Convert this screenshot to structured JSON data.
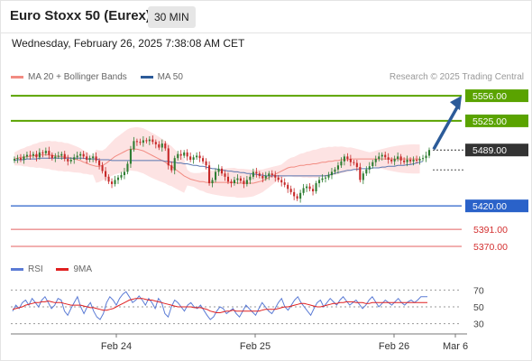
{
  "header": {
    "title": "Euro Stoxx 50 (Eurex)",
    "timeframe": "30 MIN",
    "datetime": "Wednesday, February 26, 2025 7:38:08 AM CET"
  },
  "legend": {
    "items": [
      {
        "label": "MA 20 + Bollinger Bands",
        "color": "#f28b82"
      },
      {
        "label": "MA 50",
        "color": "#2c5b99"
      }
    ],
    "credit": "Research © 2025 Trading Central"
  },
  "rsi_legend": {
    "items": [
      {
        "label": "RSI",
        "color": "#5b7bd5"
      },
      {
        "label": "9MA",
        "color": "#e02020"
      }
    ]
  },
  "colors": {
    "up": "#2e7d32",
    "down": "#c62828",
    "resistance": "#5aa300",
    "pivot": "#2a62c9",
    "support": "#e46060",
    "band_fill": "#fde3e3",
    "arrow": "#2c5b99"
  },
  "chart_data": [
    {
      "type": "candlestick",
      "title": "Euro Stoxx 50 (Eurex)",
      "ylim": [
        5360,
        5565
      ],
      "x_ticks": [
        "Feb 24",
        "Feb 25",
        "Feb 26",
        "Mar 6"
      ],
      "current_price": "5489.00",
      "levels": [
        {
          "label": "5556.00",
          "value": 5556,
          "kind": "resistance"
        },
        {
          "label": "5525.00",
          "value": 5525,
          "kind": "resistance"
        },
        {
          "label": "5420.00",
          "value": 5420,
          "kind": "pivot"
        },
        {
          "label": "5391.00",
          "value": 5391,
          "kind": "support"
        },
        {
          "label": "5370.00",
          "value": 5370,
          "kind": "support"
        }
      ],
      "close_path": [
        5478,
        5479,
        5477,
        5481,
        5483,
        5482,
        5484,
        5480,
        5486,
        5485,
        5488,
        5483,
        5479,
        5481,
        5482,
        5484,
        5478,
        5475,
        5477,
        5480,
        5482,
        5484,
        5481,
        5477,
        5479,
        5481,
        5476,
        5470,
        5463,
        5456,
        5450,
        5447,
        5452,
        5455,
        5458,
        5462,
        5472,
        5490,
        5500,
        5499,
        5498,
        5501,
        5500,
        5502,
        5499,
        5496,
        5492,
        5497,
        5491,
        5470,
        5464,
        5479,
        5484,
        5482,
        5486,
        5481,
        5477,
        5480,
        5482,
        5479,
        5475,
        5470,
        5448,
        5452,
        5462,
        5466,
        5460,
        5456,
        5450,
        5448,
        5452,
        5454,
        5451,
        5447,
        5452,
        5456,
        5462,
        5460,
        5457,
        5454,
        5457,
        5460,
        5458,
        5455,
        5452,
        5449,
        5446,
        5441,
        5437,
        5432,
        5429,
        5436,
        5442,
        5444,
        5441,
        5438,
        5448,
        5452,
        5454,
        5455,
        5458,
        5462,
        5465,
        5470,
        5475,
        5481,
        5478,
        5474,
        5473,
        5468,
        5452,
        5460,
        5465,
        5469,
        5474,
        5478,
        5481,
        5483,
        5480,
        5477,
        5475,
        5478,
        5481,
        5476,
        5474,
        5477,
        5475,
        5477,
        5476,
        5478,
        5479,
        5482,
        5489
      ],
      "ma20": [
        5478,
        5479,
        5480,
        5480,
        5481,
        5481,
        5482,
        5482,
        5483,
        5483,
        5483,
        5483,
        5482,
        5482,
        5481,
        5481,
        5480,
        5480,
        5479,
        5478,
        5477,
        5476,
        5474,
        5473,
        5471,
        5470,
        5469,
        5469,
        5470,
        5472,
        5475,
        5478,
        5481,
        5483,
        5485,
        5487,
        5489,
        5490,
        5490,
        5490,
        5489,
        5488,
        5486,
        5484,
        5482,
        5480,
        5478,
        5476,
        5474,
        5471,
        5469,
        5466,
        5463,
        5460,
        5457,
        5455,
        5453,
        5452,
        5451,
        5450,
        5450,
        5449,
        5449,
        5449,
        5449,
        5449,
        5449,
        5449,
        5449,
        5449,
        5449,
        5448,
        5448,
        5448,
        5448,
        5448,
        5448,
        5449,
        5450,
        5451,
        5453,
        5455,
        5457,
        5459,
        5461,
        5463,
        5465,
        5467,
        5468,
        5468,
        5469,
        5470,
        5470,
        5471,
        5471,
        5472,
        5472,
        5473,
        5474,
        5474,
        5475,
        5475,
        5476,
        5476,
        5477,
        5477,
        5477,
        5478,
        5478,
        5478,
        5478,
        5478,
        5478,
        5478,
        5478,
        5478,
        5478,
        5478,
        5478,
        5478,
        5478,
        5478,
        5478,
        5478,
        5478,
        5478,
        5478,
        5478,
        5478,
        5478
      ],
      "ma50": [
        5476,
        5477,
        5477,
        5477,
        5478,
        5478,
        5478,
        5478,
        5479,
        5479,
        5479,
        5479,
        5479,
        5479,
        5479,
        5479,
        5479,
        5479,
        5479,
        5479,
        5479,
        5479,
        5479,
        5478,
        5478,
        5478,
        5478,
        5477,
        5477,
        5477,
        5477,
        5476,
        5476,
        5476,
        5476,
        5476,
        5476,
        5476,
        5476,
        5476,
        5476,
        5476,
        5476,
        5476,
        5476,
        5476,
        5476,
        5476,
        5475,
        5475,
        5474,
        5474,
        5473,
        5473,
        5472,
        5472,
        5471,
        5470,
        5470,
        5469,
        5469,
        5468,
        5467,
        5466,
        5466,
        5465,
        5464,
        5464,
        5463,
        5463,
        5462,
        5462,
        5461,
        5461,
        5460,
        5460,
        5459,
        5459,
        5458,
        5458,
        5457,
        5457,
        5457,
        5457,
        5457,
        5457,
        5457,
        5457,
        5457,
        5457,
        5457,
        5457,
        5457,
        5457,
        5457,
        5457,
        5457,
        5457,
        5457,
        5457,
        5458,
        5459,
        5460,
        5461,
        5462,
        5463,
        5464,
        5464,
        5465,
        5465,
        5466,
        5466,
        5466,
        5466,
        5467,
        5467,
        5467,
        5468,
        5468,
        5469,
        5469,
        5469,
        5470,
        5470,
        5470,
        5471,
        5471,
        5472,
        5473,
        5474,
        5475
      ]
    },
    {
      "type": "line",
      "title": "RSI",
      "ylim": [
        20,
        80
      ],
      "y_ticks": [
        70,
        50,
        30
      ],
      "series": [
        {
          "name": "RSI",
          "values": [
            45,
            52,
            48,
            55,
            58,
            52,
            60,
            55,
            50,
            58,
            62,
            55,
            48,
            52,
            60,
            58,
            45,
            40,
            48,
            55,
            62,
            50,
            42,
            50,
            55,
            45,
            38,
            35,
            42,
            55,
            62,
            58,
            52,
            60,
            65,
            68,
            62,
            55,
            58,
            63,
            58,
            52,
            60,
            55,
            48,
            60,
            55,
            42,
            38,
            50,
            58,
            55,
            50,
            45,
            52,
            55,
            50,
            48,
            52,
            46,
            40,
            35,
            38,
            45,
            50,
            48,
            42,
            45,
            48,
            42,
            38,
            45,
            52,
            48,
            44,
            40,
            48,
            55,
            50,
            45,
            42,
            48,
            55,
            60,
            50,
            46,
            52,
            58,
            62,
            55,
            50,
            45,
            40,
            48,
            55,
            58,
            50,
            55,
            60,
            56,
            52,
            58,
            62,
            57,
            52,
            55,
            58,
            53,
            48,
            52,
            58,
            62,
            56,
            50,
            54,
            58,
            55,
            52,
            56,
            60,
            55,
            52,
            56,
            58,
            55,
            58,
            62,
            62,
            62
          ]
        },
        {
          "name": "9MA",
          "values": [
            47,
            48,
            49,
            50,
            52,
            53,
            54,
            55,
            55,
            56,
            56,
            57,
            56,
            55,
            55,
            55,
            54,
            53,
            52,
            52,
            52,
            52,
            51,
            50,
            49,
            49,
            48,
            47,
            46,
            46,
            47,
            48,
            50,
            52,
            54,
            56,
            58,
            59,
            60,
            60,
            60,
            59,
            58,
            58,
            57,
            56,
            55,
            54,
            53,
            52,
            51,
            50,
            50,
            50,
            50,
            50,
            49,
            49,
            49,
            48,
            47,
            45,
            44,
            43,
            43,
            44,
            45,
            45,
            46,
            45,
            45,
            45,
            45,
            45,
            45,
            45,
            45,
            46,
            47,
            47,
            47,
            47,
            48,
            49,
            50,
            50,
            51,
            52,
            53,
            54,
            54,
            53,
            52,
            51,
            50,
            50,
            51,
            52,
            53,
            54,
            54,
            55,
            55,
            56,
            56,
            56,
            55,
            55,
            55,
            54,
            54,
            55,
            55,
            55,
            55,
            55,
            55,
            55,
            55,
            55,
            55,
            55,
            55,
            55,
            55,
            55,
            55,
            55,
            55
          ]
        }
      ]
    }
  ]
}
